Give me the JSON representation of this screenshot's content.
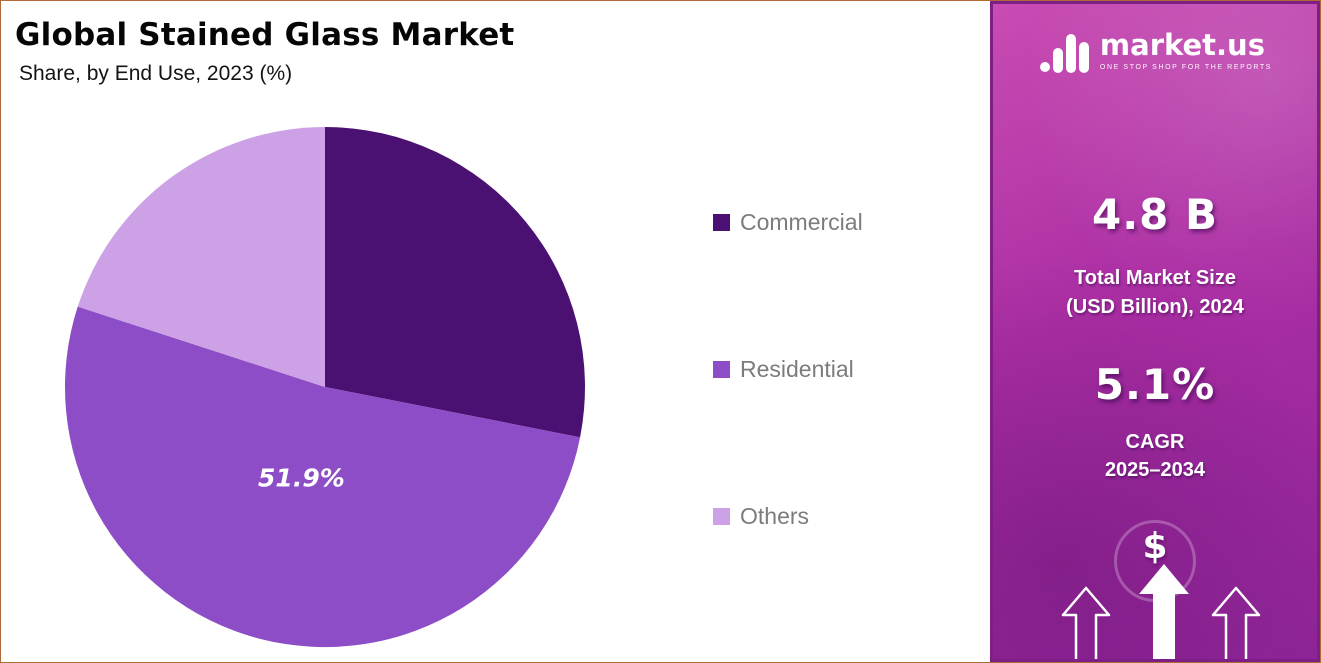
{
  "header": {
    "title": "Global Stained Glass Market",
    "subtitle": "Share, by End Use, 2023 (%)"
  },
  "chart_data": {
    "type": "pie",
    "title": "Global Stained Glass Market — Share, by End Use, 2023 (%)",
    "labels": [
      "Commercial",
      "Residential",
      "Others"
    ],
    "values": [
      28.1,
      51.9,
      20.0
    ],
    "colors": [
      "#4a1173",
      "#8c4dc6",
      "#cda1e6"
    ],
    "slice_label": {
      "series": "Residential",
      "text": "51.9%"
    },
    "start_angle_deg": 0,
    "direction": "clockwise",
    "legend_position": "right"
  },
  "legend": {
    "items": [
      {
        "label": "Commercial",
        "color": "#4a1173"
      },
      {
        "label": "Residential",
        "color": "#8c4dc6"
      },
      {
        "label": "Others",
        "color": "#cda1e6"
      }
    ]
  },
  "sidebar": {
    "brand": {
      "name": "market.us",
      "tagline": "ONE STOP SHOP FOR THE REPORTS"
    },
    "stat_1": {
      "value": "4.8 B",
      "line1": "Total Market Size",
      "line2": "(USD Billion), 2024"
    },
    "stat_2": {
      "value": "5.1%",
      "line1": "CAGR",
      "line2": "2025–2034"
    },
    "currency_symbol": "$"
  }
}
